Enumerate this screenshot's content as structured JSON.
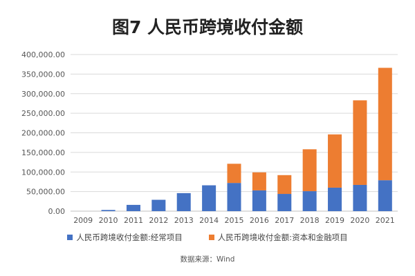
{
  "title": "图7 人民币跨境收付金额",
  "source_note": "数据来源：Wind",
  "colors": {
    "current": "#4472C4",
    "capital": "#ED7D31"
  },
  "chart_data": {
    "type": "bar",
    "stacked": true,
    "title": "图7 人民币跨境收付金额",
    "categories": [
      "2009",
      "2010",
      "2011",
      "2012",
      "2013",
      "2014",
      "2015",
      "2016",
      "2017",
      "2018",
      "2019",
      "2020",
      "2021"
    ],
    "series": [
      {
        "name": "人民币跨境收付金额:经常项目",
        "values": [
          0,
          3000,
          16000,
          29000,
          46000,
          66000,
          72000,
          53000,
          44000,
          51000,
          60000,
          67000,
          79000
        ]
      },
      {
        "name": "人民币跨境收付金额:资本和金融项目",
        "values": [
          0,
          0,
          0,
          0,
          0,
          0,
          49000,
          46000,
          48000,
          107000,
          136000,
          216000,
          287000
        ]
      }
    ],
    "ylim": [
      0,
      400000
    ],
    "yticks": [
      "0.00",
      "50,000.00",
      "100,000.00",
      "150,000.00",
      "200,000.00",
      "250,000.00",
      "300,000.00",
      "350,000.00",
      "400,000.00"
    ],
    "grid": true,
    "legend_position": "bottom"
  }
}
